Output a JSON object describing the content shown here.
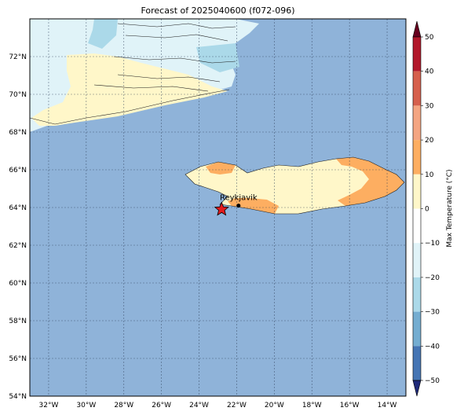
{
  "title": "Forecast of 2025040600 (f072-096)",
  "colors": {
    "ocean": "#8fb3d9",
    "ice": "#e0f3f8",
    "cool": "#abd9e9",
    "mild": "#fff7c9",
    "warm": "#fdae61",
    "marker": "#e31a1c"
  },
  "map": {
    "lon_range": [
      -33,
      -13
    ],
    "lat_range": [
      54,
      74
    ],
    "lat_ticks": [
      {
        "value": 72,
        "label": "72°N"
      },
      {
        "value": 70,
        "label": "70°N"
      },
      {
        "value": 68,
        "label": "68°N"
      },
      {
        "value": 66,
        "label": "66°N"
      },
      {
        "value": 64,
        "label": "64°N"
      },
      {
        "value": 62,
        "label": "62°N"
      },
      {
        "value": 60,
        "label": "60°N"
      },
      {
        "value": 58,
        "label": "58°N"
      },
      {
        "value": 56,
        "label": "56°N"
      },
      {
        "value": 54,
        "label": "54°N"
      }
    ],
    "lon_ticks": [
      {
        "value": -32,
        "label": "32°W"
      },
      {
        "value": -30,
        "label": "30°W"
      },
      {
        "value": -28,
        "label": "28°W"
      },
      {
        "value": -26,
        "label": "26°W"
      },
      {
        "value": -24,
        "label": "24°W"
      },
      {
        "value": -22,
        "label": "22°W"
      },
      {
        "value": -20,
        "label": "20°W"
      },
      {
        "value": -18,
        "label": "18°W"
      },
      {
        "value": -16,
        "label": "16°W"
      },
      {
        "value": -14,
        "label": "14°W"
      }
    ],
    "city": {
      "name": "Reykjavik",
      "lon": -21.9,
      "lat": 64.1
    },
    "marker": {
      "lon": -22.8,
      "lat": 63.9
    }
  },
  "colorbar": {
    "label": "Max Temperature (°C)",
    "ticks": [
      "50",
      "40",
      "30",
      "20",
      "10",
      "0",
      "−10",
      "−20",
      "−30",
      "−40",
      "−50"
    ],
    "bins": [
      "#67001f",
      "#b2182b",
      "#d6604d",
      "#f4a582",
      "#fdae61",
      "#fff7c9",
      "#ffffff",
      "#e0f3f8",
      "#abd9e9",
      "#74add1",
      "#4575b4",
      "#313695",
      "#1f2a7a"
    ]
  }
}
